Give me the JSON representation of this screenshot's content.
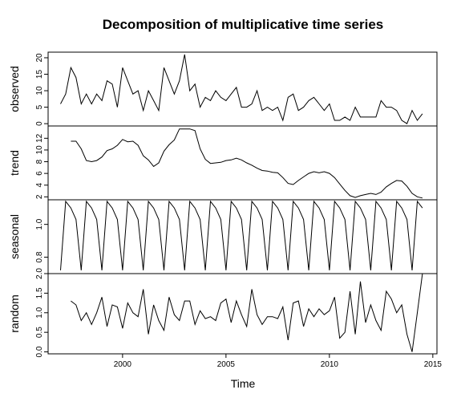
{
  "chart_data": {
    "type": "line",
    "title": "Decomposition of multiplicative time series",
    "xlabel": "Time",
    "xlim": [
      1996.4,
      2015.2
    ],
    "x_ticks": [
      2000,
      2005,
      2010,
      2015
    ],
    "x_start": 1997.0,
    "x_step": 0.25,
    "panels": [
      {
        "name": "observed",
        "ylabel": "observed",
        "ylim": [
          -0.7,
          21.7
        ],
        "y_ticks": [
          0,
          5,
          10,
          15,
          20
        ],
        "values": [
          6,
          9,
          17,
          14,
          6,
          9,
          6,
          9,
          7,
          13,
          12,
          5,
          17,
          13,
          9,
          10,
          4,
          10,
          7,
          4,
          17,
          13,
          9,
          13,
          21,
          10,
          12,
          5,
          8,
          7,
          10,
          8,
          7,
          9,
          11,
          5,
          5,
          6,
          10,
          4,
          5,
          4,
          5,
          1,
          8,
          9,
          4,
          5,
          7,
          8,
          6,
          4,
          6,
          1,
          1,
          2,
          1,
          5,
          2,
          2,
          2,
          2,
          7,
          5,
          5,
          4,
          1,
          0,
          4,
          1,
          3
        ]
      },
      {
        "name": "trend",
        "ylabel": "trend",
        "ylim": [
          1.5,
          14.1
        ],
        "y_ticks": [
          2,
          4,
          6,
          8,
          10,
          12
        ],
        "values": [
          null,
          null,
          11.5,
          11.5,
          10.2,
          8.2,
          8.0,
          8.2,
          8.8,
          9.9,
          10.2,
          10.8,
          11.8,
          11.4,
          11.5,
          10.8,
          9.0,
          8.3,
          7.2,
          7.8,
          9.8,
          10.9,
          11.7,
          13.6,
          13.6,
          13.6,
          13.3,
          10.2,
          8.4,
          7.7,
          7.8,
          7.9,
          8.2,
          8.3,
          8.6,
          8.3,
          7.8,
          7.4,
          6.9,
          6.5,
          6.4,
          6.2,
          6.1,
          5.3,
          4.3,
          4.1,
          4.8,
          5.4,
          6.0,
          6.3,
          6.1,
          6.3,
          6.0,
          5.3,
          4.2,
          3.1,
          2.2,
          1.9,
          2.2,
          2.4,
          2.6,
          2.4,
          2.8,
          3.7,
          4.3,
          4.8,
          4.7,
          3.8,
          2.6,
          2.0,
          1.8
        ]
      },
      {
        "name": "seasonal",
        "ylabel": "seasonal",
        "ylim": [
          0.7,
          1.15
        ],
        "y_ticks": [
          0.8,
          1.0
        ],
        "seasonal_pattern": [
          0.72,
          1.14,
          1.1,
          1.03
        ],
        "values_note": "",
        "values": []
      },
      {
        "name": "random",
        "ylabel": "random",
        "ylim": [
          -0.05,
          2.0
        ],
        "y_ticks": [
          0.0,
          0.5,
          1.0,
          1.5,
          2.0
        ],
        "values": [
          null,
          null,
          1.3,
          1.2,
          0.8,
          1.0,
          0.7,
          1.0,
          1.4,
          0.65,
          1.2,
          1.15,
          0.6,
          1.25,
          1.0,
          0.9,
          1.6,
          0.45,
          1.2,
          0.8,
          0.55,
          1.4,
          0.95,
          0.8,
          1.3,
          1.3,
          0.7,
          1.05,
          0.85,
          0.9,
          0.8,
          1.25,
          1.35,
          0.75,
          1.3,
          0.95,
          0.65,
          1.6,
          0.95,
          0.7,
          0.9,
          0.9,
          0.85,
          1.15,
          0.3,
          1.25,
          1.3,
          0.65,
          1.1,
          0.9,
          1.1,
          0.95,
          1.05,
          1.4,
          0.35,
          0.5,
          1.55,
          0.45,
          1.8,
          0.75,
          1.2,
          0.8,
          0.55,
          1.55,
          1.35,
          1.0,
          1.2,
          0.45,
          0.0,
          1.0,
          2.0
        ]
      }
    ]
  }
}
